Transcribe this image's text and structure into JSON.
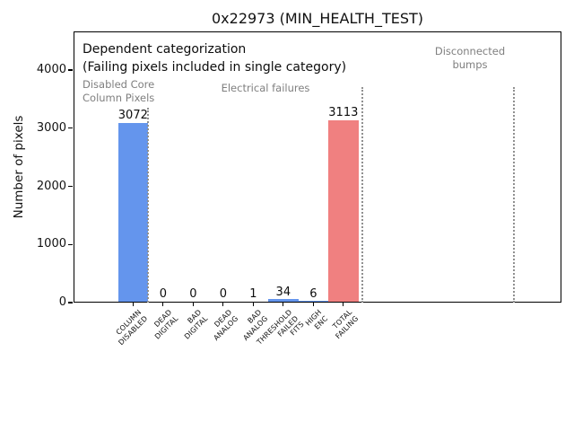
{
  "title": "0x22973 (MIN_HEALTH_TEST)",
  "chart_data": {
    "type": "bar",
    "title": "0x22973 (MIN_HEALTH_TEST)",
    "ylabel": "Number of pixels",
    "xlabel": "",
    "categories": [
      "COLUMN\nDISABLED",
      "DEAD\nDIGITAL",
      "BAD\nDIGITAL",
      "DEAD\nANALOG",
      "BAD\nANALOG",
      "THRESHOLD\nFAILED\nFITS",
      "HIGH\nENC",
      "TOTAL\nFAILING"
    ],
    "values": [
      3072,
      0,
      0,
      0,
      1,
      34,
      6,
      3113
    ],
    "bar_colors": [
      "#6495ed",
      "#6495ed",
      "#6495ed",
      "#6495ed",
      "#6495ed",
      "#6495ed",
      "#6495ed",
      "#f08080"
    ],
    "yticks": [
      0,
      1000,
      2000,
      3000,
      4000
    ],
    "ylim": [
      0,
      4664
    ],
    "xlim": [
      -1.98,
      14.26
    ],
    "grid": false,
    "legend": false,
    "value_labels_shown": true,
    "annotations": [
      {
        "id": "dependent-categorization",
        "text": "Dependent categorization",
        "color": "#0d0d0d"
      },
      {
        "id": "failing-note",
        "text": "(Failing pixels included in single category)",
        "color": "#0d0d0d"
      },
      {
        "id": "region-disabled-core",
        "text": "Disabled Core\nColumn Pixels",
        "color": "#7f7f7f"
      },
      {
        "id": "region-electrical-failures",
        "text": "Electrical failures",
        "color": "#7f7f7f"
      },
      {
        "id": "region-disconnected-bumps",
        "text": "Disconnected\nbumps",
        "color": "#7f7f7f"
      }
    ],
    "separators_x_units": [
      0.51,
      7.63,
      12.69
    ],
    "colors": {
      "axis": "#000000",
      "separator": "#909090",
      "bar_blue": "#6495ed",
      "bar_red": "#f08080",
      "annotation_gray": "#7f7f7f"
    }
  }
}
